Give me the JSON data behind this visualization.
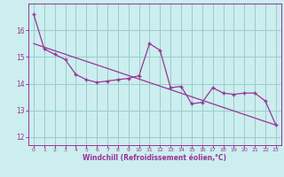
{
  "line1_x": [
    0,
    1,
    2,
    3,
    4,
    5,
    6,
    7,
    8,
    9,
    10,
    11,
    12,
    13,
    14,
    15,
    16,
    17,
    18,
    19,
    20,
    21,
    22,
    23
  ],
  "line1_y": [
    16.6,
    15.3,
    15.1,
    14.9,
    14.35,
    14.15,
    14.05,
    14.1,
    14.15,
    14.2,
    14.3,
    15.5,
    15.25,
    13.85,
    13.9,
    13.25,
    13.3,
    13.85,
    13.65,
    13.6,
    13.65,
    13.65,
    13.35,
    12.45
  ],
  "trend_x": [
    0,
    23
  ],
  "trend_y": [
    15.5,
    12.45
  ],
  "line_color": "#993399",
  "bg_color": "#cceeee",
  "grid_color": "#99cccc",
  "tick_color": "#993399",
  "xlabel": "Windchill (Refroidissement éolien,°C)",
  "xticks": [
    0,
    1,
    2,
    3,
    4,
    5,
    6,
    7,
    8,
    9,
    10,
    11,
    12,
    13,
    14,
    15,
    16,
    17,
    18,
    19,
    20,
    21,
    22,
    23
  ],
  "yticks": [
    12,
    13,
    14,
    15,
    16
  ],
  "ylim": [
    11.7,
    17.0
  ],
  "xlim": [
    -0.5,
    23.5
  ]
}
